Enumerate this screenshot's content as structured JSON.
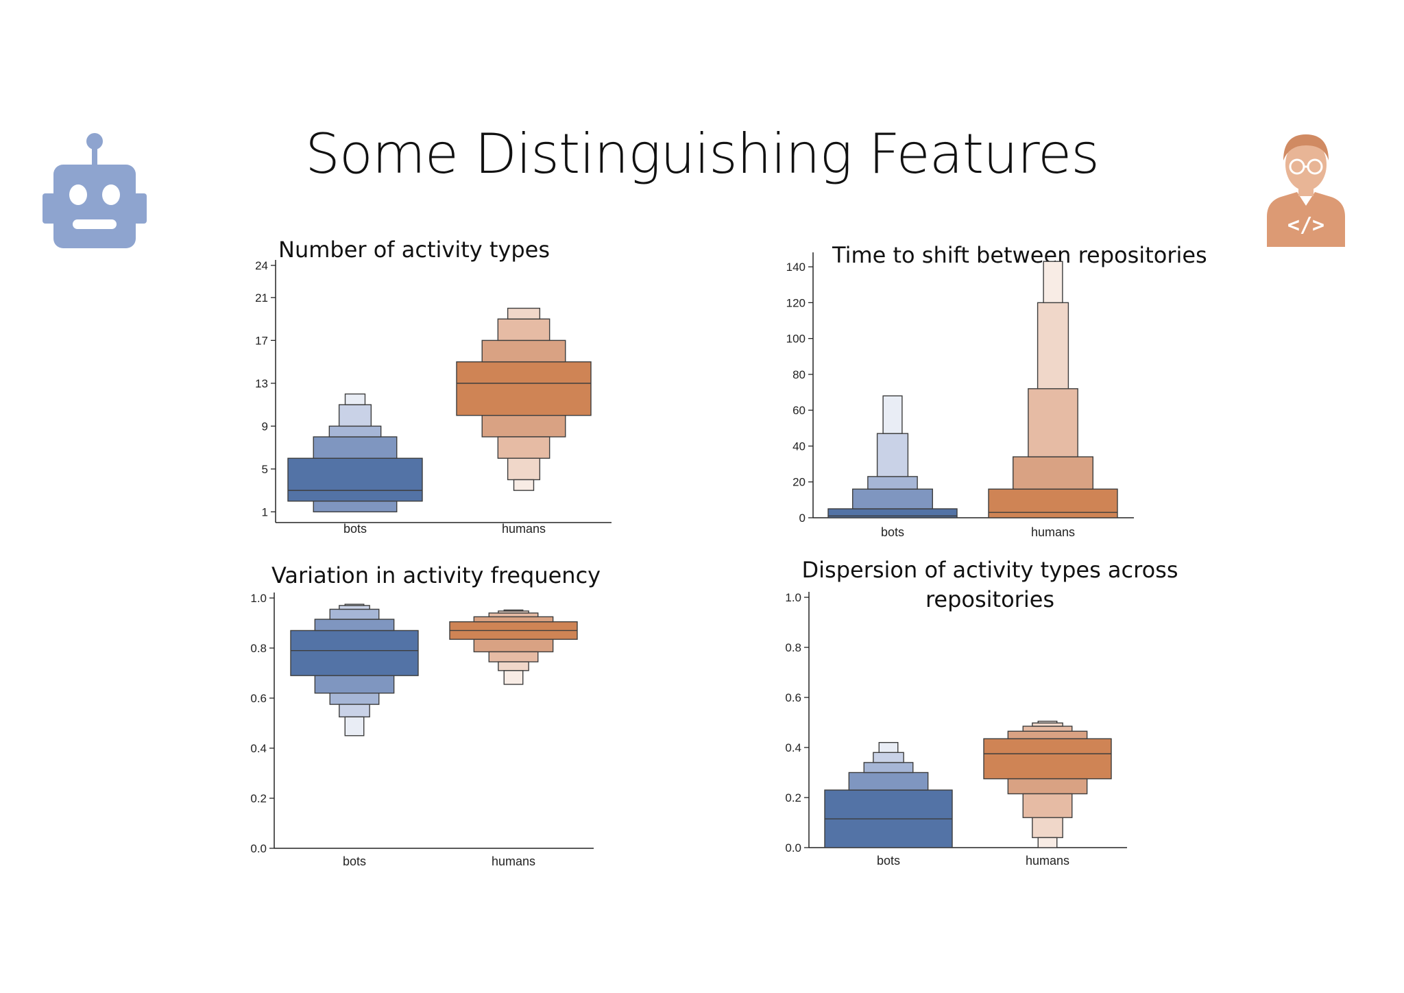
{
  "slide": {
    "title": "Some Distinguishing Features"
  },
  "icons": {
    "left": "robot-icon",
    "right": "developer-icon"
  },
  "colors": {
    "bots": [
      "#5373a6",
      "#7f96c0",
      "#a6b6d6",
      "#c9d2e7",
      "#e9edf5"
    ],
    "humans": [
      "#cf8455",
      "#d9a283",
      "#e6bba4",
      "#f0d7c9",
      "#f8ece5"
    ],
    "line": "#3d3d3d",
    "text": "#111111"
  },
  "chart_data": [
    {
      "id": "activity-types",
      "type": "boxen",
      "title": "Number of activity types",
      "categories": [
        "bots",
        "humans"
      ],
      "yticks": [
        1,
        5,
        9,
        13,
        17,
        21,
        24
      ],
      "ylim": [
        0,
        24
      ],
      "series": [
        {
          "category": "bots",
          "median": 3,
          "levels": [
            [
              2,
              6
            ],
            [
              1,
              8
            ],
            [
              8.5,
              9
            ],
            [
              9,
              11
            ],
            [
              11,
              12
            ]
          ],
          "boxes": [
            [
              2,
              6
            ],
            [
              1,
              2
            ],
            [
              6,
              8
            ],
            [
              8,
              9
            ],
            [
              9,
              11
            ],
            [
              11,
              12
            ]
          ]
        },
        {
          "category": "humans",
          "median": 13,
          "levels": [],
          "boxes": [
            [
              10,
              15
            ],
            [
              8,
              10
            ],
            [
              15,
              17
            ],
            [
              6,
              8
            ],
            [
              17,
              19
            ],
            [
              4,
              6
            ],
            [
              19,
              20
            ],
            [
              3,
              4
            ]
          ]
        }
      ]
    },
    {
      "id": "shift-time",
      "type": "boxen",
      "title": "Time to shift between repositories",
      "categories": [
        "bots",
        "humans"
      ],
      "yticks": [
        0,
        20,
        40,
        60,
        80,
        100,
        120,
        140
      ],
      "ylim": [
        0,
        145
      ],
      "series": [
        {
          "category": "bots",
          "median": 1,
          "boxes": [
            [
              0,
              5
            ],
            [
              5,
              16
            ],
            [
              16,
              23
            ],
            [
              23,
              47
            ],
            [
              47,
              68
            ]
          ]
        },
        {
          "category": "humans",
          "median": 3,
          "boxes": [
            [
              0,
              16
            ],
            [
              16,
              34
            ],
            [
              34,
              72
            ],
            [
              72,
              120
            ],
            [
              120,
              143
            ]
          ]
        }
      ]
    },
    {
      "id": "frequency-variation",
      "type": "boxen",
      "title": "Variation in activity frequency",
      "categories": [
        "bots",
        "humans"
      ],
      "yticks": [
        "0.0",
        "0.2",
        "0.4",
        "0.6",
        "0.8",
        "1.0"
      ],
      "ylim": [
        0,
        1.0
      ],
      "series": [
        {
          "category": "bots",
          "median": 0.79,
          "boxes": [
            [
              0.69,
              0.87
            ],
            [
              0.62,
              0.69
            ],
            [
              0.87,
              0.915
            ],
            [
              0.575,
              0.62
            ],
            [
              0.915,
              0.955
            ],
            [
              0.525,
              0.575
            ],
            [
              0.955,
              0.97
            ],
            [
              0.45,
              0.525
            ],
            [
              0.97,
              0.975
            ]
          ]
        },
        {
          "category": "humans",
          "median": 0.87,
          "boxes": [
            [
              0.835,
              0.905
            ],
            [
              0.785,
              0.835
            ],
            [
              0.905,
              0.925
            ],
            [
              0.745,
              0.785
            ],
            [
              0.925,
              0.94
            ],
            [
              0.71,
              0.745
            ],
            [
              0.94,
              0.948
            ],
            [
              0.655,
              0.71
            ],
            [
              0.948,
              0.952
            ]
          ]
        }
      ]
    },
    {
      "id": "dispersion",
      "type": "boxen",
      "title": "Dispersion of activity types across repositories",
      "title_lines": [
        "Dispersion of activity types across",
        "repositories"
      ],
      "categories": [
        "bots",
        "humans"
      ],
      "yticks": [
        "0.0",
        "0.2",
        "0.4",
        "0.6",
        "0.8",
        "1.0"
      ],
      "ylim": [
        0,
        1.0
      ],
      "series": [
        {
          "category": "bots",
          "median": 0.115,
          "boxes": [
            [
              0.0,
              0.23
            ],
            [
              0.23,
              0.3
            ],
            [
              0.3,
              0.34
            ],
            [
              0.34,
              0.38
            ],
            [
              0.38,
              0.42
            ]
          ]
        },
        {
          "category": "humans",
          "median": 0.375,
          "boxes": [
            [
              0.275,
              0.435
            ],
            [
              0.215,
              0.275
            ],
            [
              0.435,
              0.465
            ],
            [
              0.12,
              0.215
            ],
            [
              0.465,
              0.485
            ],
            [
              0.04,
              0.12
            ],
            [
              0.485,
              0.498
            ],
            [
              0.0,
              0.04
            ],
            [
              0.498,
              0.505
            ]
          ]
        }
      ]
    }
  ]
}
